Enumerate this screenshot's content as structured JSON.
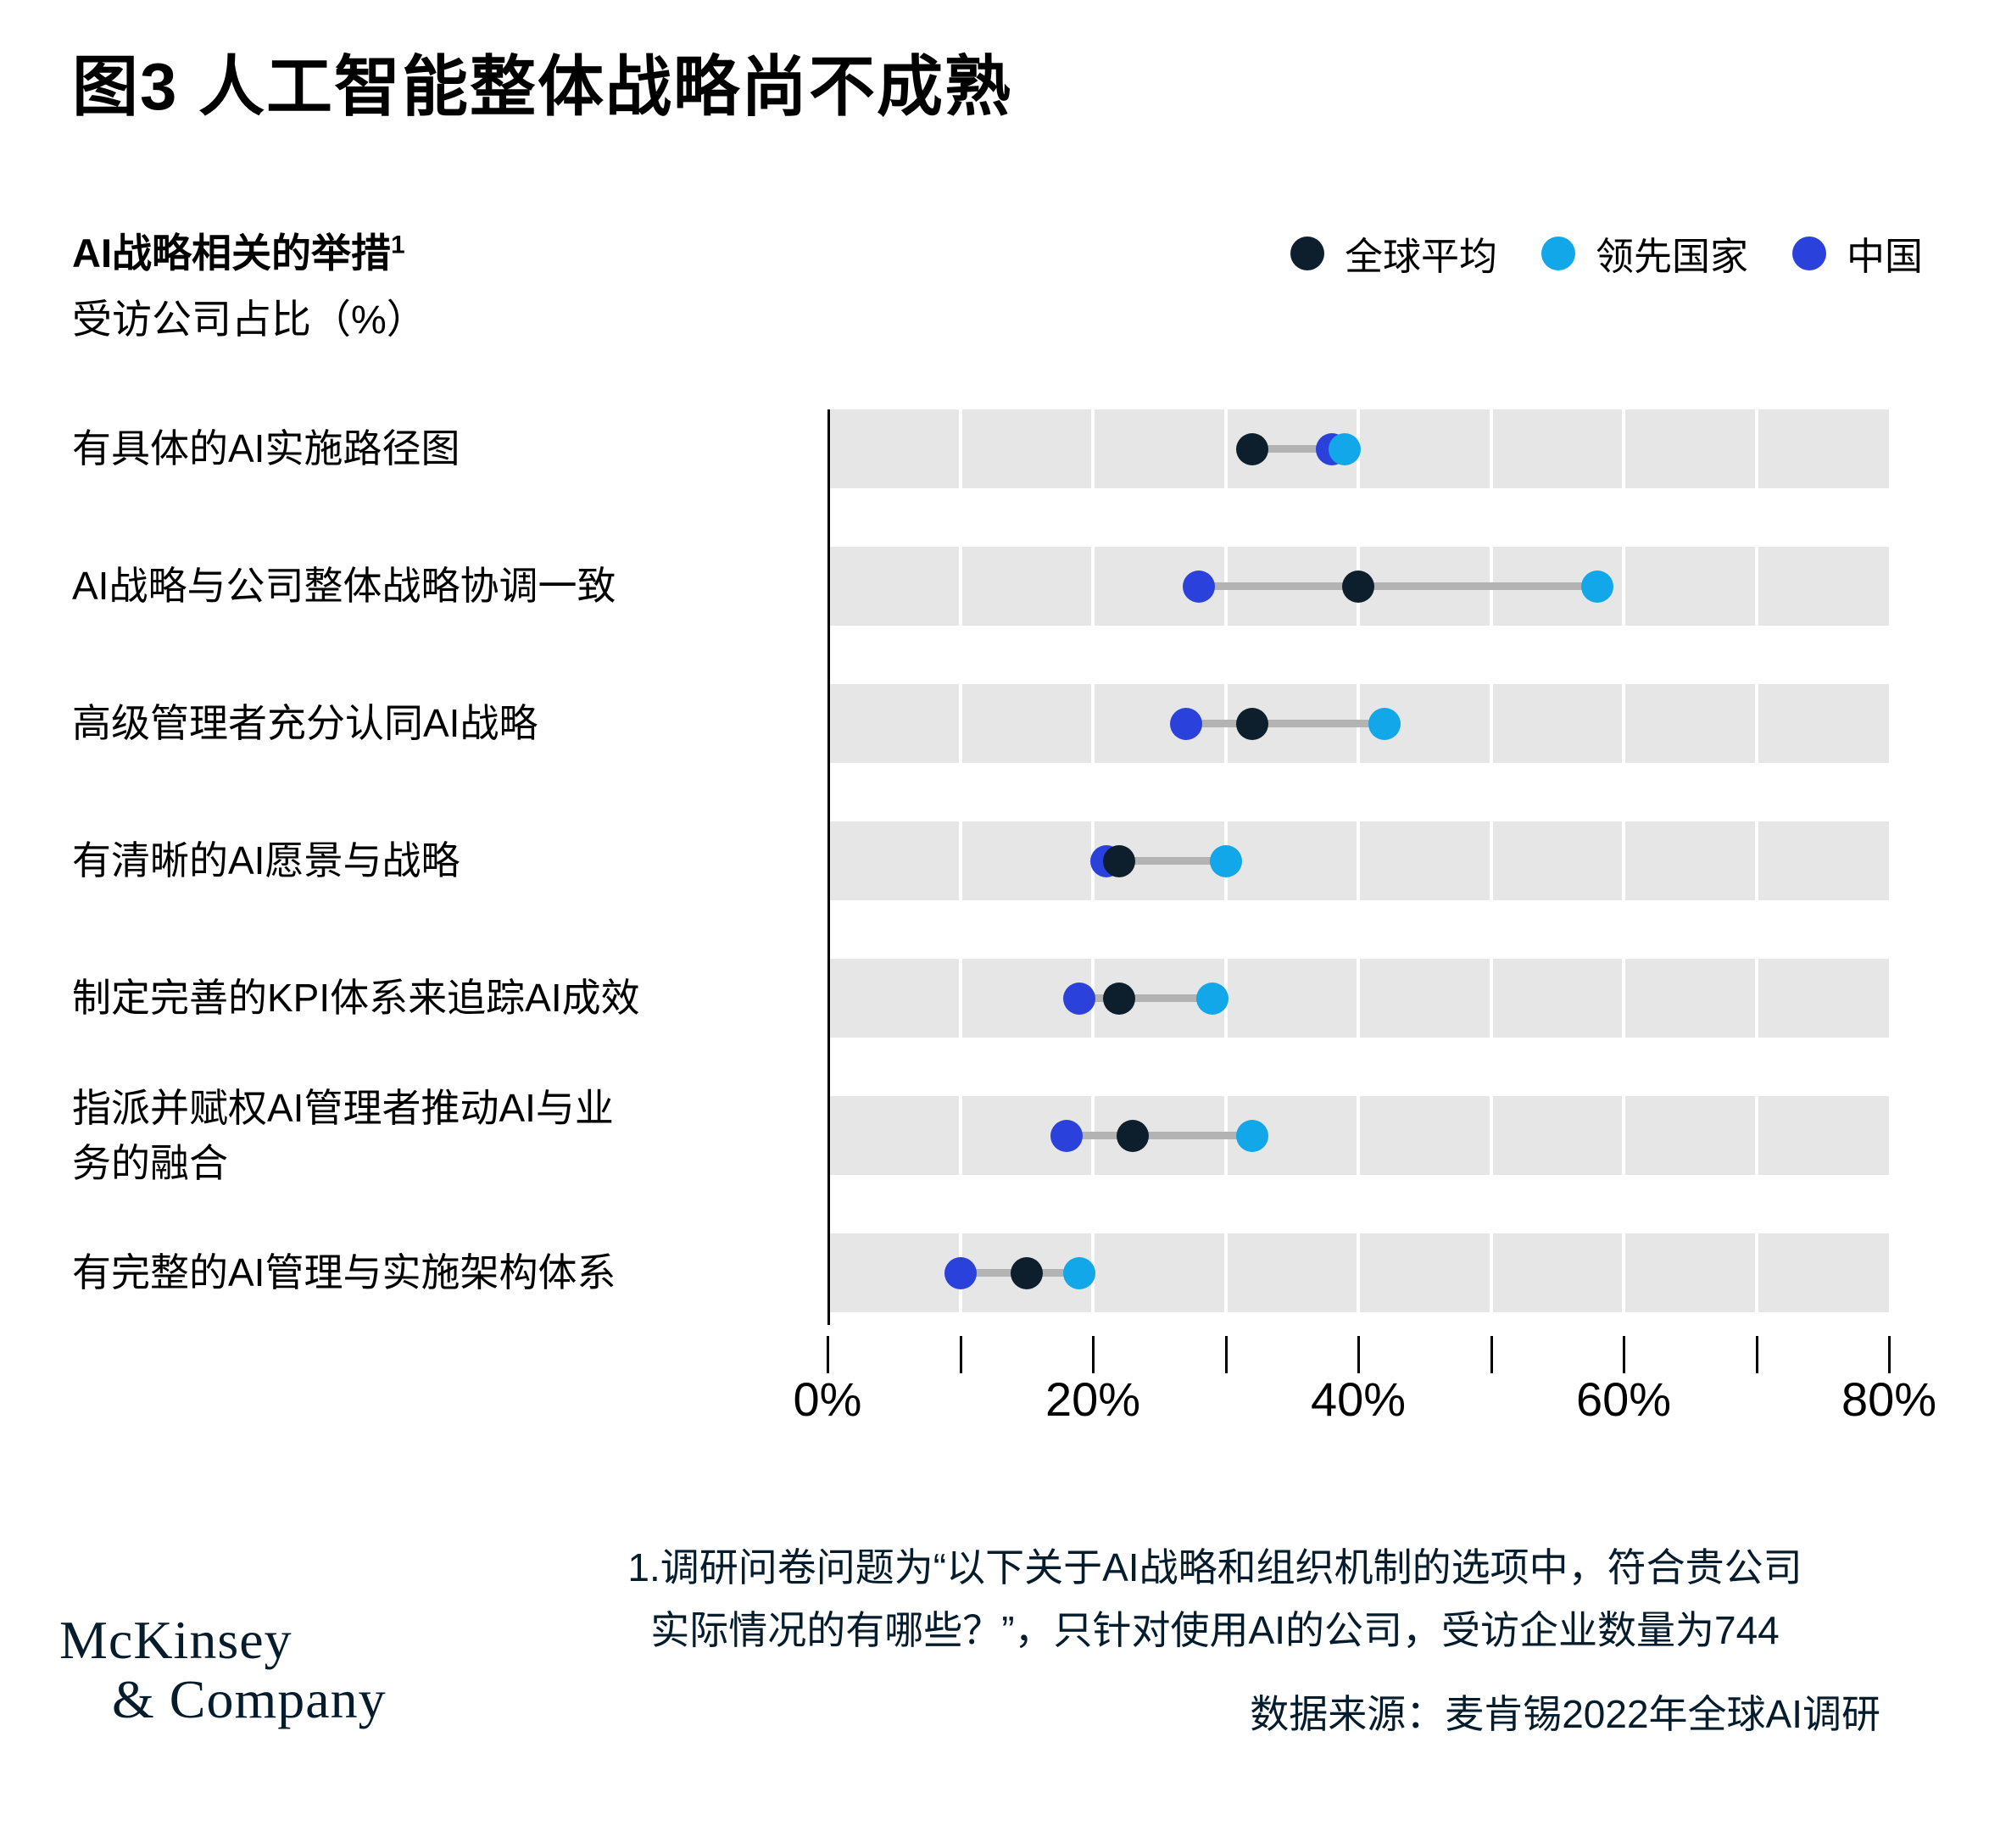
{
  "title": "图3 人工智能整体战略尚不成熟",
  "subtitle": {
    "text": "AI战略相关的举措",
    "sup": "1"
  },
  "axis_note": "受访公司占比（%）",
  "legend": [
    {
      "key": "global",
      "label": "全球平均",
      "color": "#0D1F2D"
    },
    {
      "key": "leading",
      "label": "领先国家",
      "color": "#12A7E8"
    },
    {
      "key": "china",
      "label": "中国",
      "color": "#2B41DC"
    }
  ],
  "chart_data": {
    "type": "scatter",
    "subtype": "dot-plot-ranges",
    "title": "图3 人工智能整体战略尚不成熟",
    "xlabel": "受访公司占比（%）",
    "xlim": [
      0,
      80
    ],
    "x_minor_ticks": [
      0,
      10,
      20,
      30,
      40,
      50,
      60,
      70,
      80
    ],
    "x_tick_labels": [
      {
        "value": 0,
        "label": "0%"
      },
      {
        "value": 20,
        "label": "20%"
      },
      {
        "value": 40,
        "label": "40%"
      },
      {
        "value": 60,
        "label": "60%"
      },
      {
        "value": 80,
        "label": "80%"
      }
    ],
    "grid": "white vertical gaps every 10% inside gray row bands",
    "legend_position": "top-right",
    "categories": [
      "有具体的AI实施路径图",
      "AI战略与公司整体战略协调一致",
      "高级管理者充分认同AI战略",
      "有清晰的AI愿景与战略",
      "制定完善的KPI体系来追踪AI成效",
      "指派并赋权AI管理者推动AI与业务的融合",
      "有完整的AI管理与实施架构体系"
    ],
    "category_display_lines": [
      [
        "有具体的AI实施路径图"
      ],
      [
        "AI战略与公司整体战略协调一致"
      ],
      [
        "高级管理者充分认同AI战略"
      ],
      [
        "有清晰的AI愿景与战略"
      ],
      [
        "制定完善的KPI体系来追踪AI成效"
      ],
      [
        "指派并赋权AI管理者推动AI与业",
        "务的融合"
      ],
      [
        "有完整的AI管理与实施架构体系"
      ]
    ],
    "series": [
      {
        "name": "全球平均",
        "key": "global",
        "color": "#0D1F2D",
        "values": [
          32,
          40,
          32,
          22,
          22,
          23,
          15
        ]
      },
      {
        "name": "领先国家",
        "key": "leading",
        "color": "#12A7E8",
        "values": [
          39,
          58,
          42,
          30,
          29,
          32,
          19
        ]
      },
      {
        "name": "中国",
        "key": "china",
        "color": "#2B41DC",
        "values": [
          38,
          28,
          27,
          21,
          19,
          18,
          10
        ]
      }
    ]
  },
  "footnote": {
    "line1": "1.调研问卷问题为“以下关于AI战略和组织机制的选项中，符合贵公司",
    "line2": "实际情况的有哪些？”，只针对使用AI的公司，受访企业数量为744"
  },
  "source": "数据来源：麦肯锡2022年全球AI调研",
  "logo": {
    "line1": "McKinsey",
    "line2": "& Company"
  },
  "colors": {
    "band": "#E6E6E6",
    "connector": "#B3B3B3",
    "axis": "#000000",
    "footnote_text": "#051C2C"
  }
}
